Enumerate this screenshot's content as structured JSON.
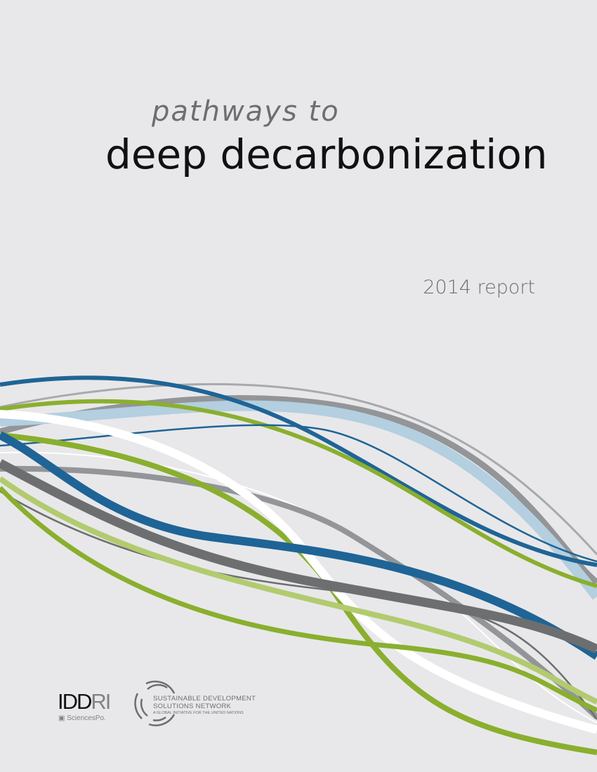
{
  "cover": {
    "subtitle": "pathways to",
    "title": "deep decarbonization",
    "year_label": "2014 report"
  },
  "logos": {
    "iddri_dark": "IDD",
    "iddri_light": "RI",
    "sciencespo": "SciencesPo.",
    "sdsn_line1": "SUSTAINABLE DEVELOPMENT",
    "sdsn_line2": "SOLUTIONS NETWORK",
    "sdsn_line3": "A GLOBAL INITIATIVE FOR THE UNITED NATIONS"
  },
  "colors": {
    "background": "#e8e8ea",
    "blue": "#1f6496",
    "green": "#8aaf2e",
    "light_green": "#b2cb6f",
    "light_blue": "#b3cfe0",
    "gray": "#939598",
    "dark_gray": "#6d6e70",
    "white": "#ffffff"
  }
}
